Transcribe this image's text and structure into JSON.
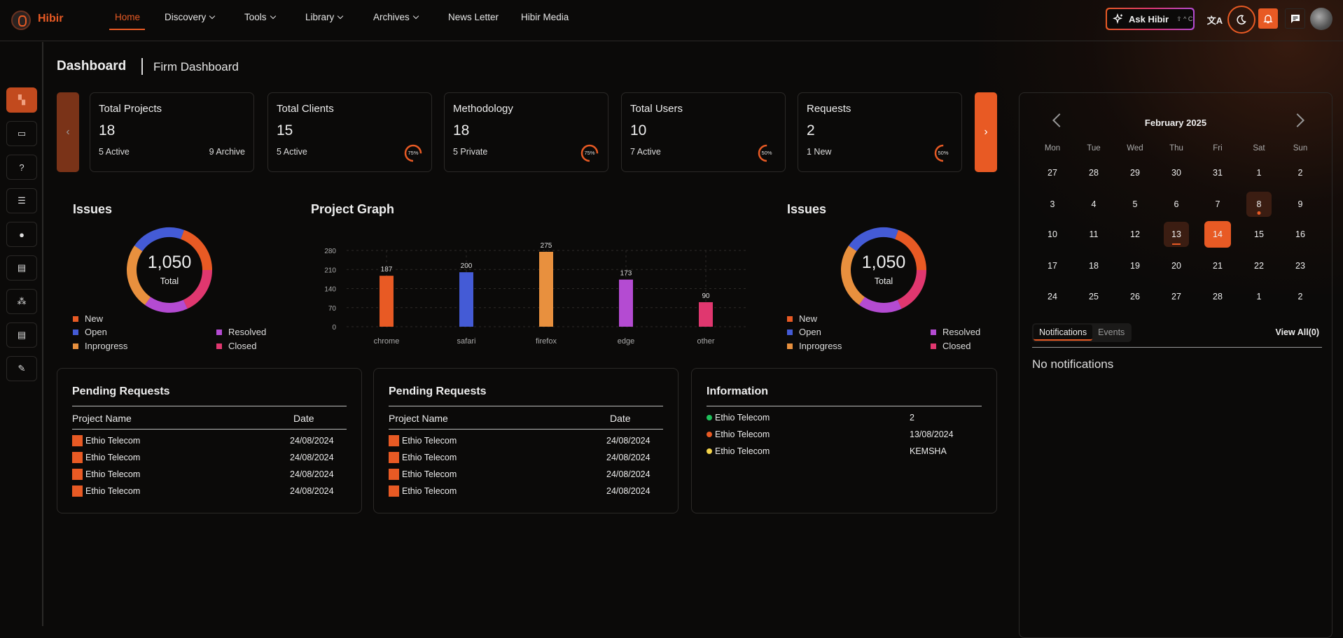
{
  "brand": "Hibir",
  "nav": [
    {
      "label": "Home",
      "dropdown": false
    },
    {
      "label": "Discovery",
      "dropdown": true
    },
    {
      "label": "Tools",
      "dropdown": true
    },
    {
      "label": "Library",
      "dropdown": true
    },
    {
      "label": "Archives",
      "dropdown": true
    },
    {
      "label": "News Letter",
      "dropdown": false
    },
    {
      "label": "Hibir Media",
      "dropdown": false
    }
  ],
  "ask": {
    "label": "Ask Hibir",
    "shortcut": "⇧ ^ C"
  },
  "sidebar": [
    "dashboard-icon",
    "briefcase-icon",
    "help-icon",
    "list-icon",
    "user-icon",
    "scroll-icon",
    "team-icon",
    "document-icon",
    "tools-icon"
  ],
  "page": {
    "title": "Dashboard",
    "subtitle": "Firm Dashboard"
  },
  "stats": [
    {
      "title": "Total Projects",
      "value": "18",
      "sub": "5 Active",
      "right": "9 Archive"
    },
    {
      "title": "Total Clients",
      "value": "15",
      "sub": "5 Active",
      "percent": 75
    },
    {
      "title": "Methodology",
      "value": "18",
      "sub": "5 Private",
      "percent": 75
    },
    {
      "title": "Total Users",
      "value": "10",
      "sub": "7 Active",
      "percent": 50
    },
    {
      "title": "Requests",
      "value": "2",
      "sub": "1 New",
      "percent": 50
    }
  ],
  "colors": {
    "accent": "#e85a24",
    "new": "#e85a24",
    "open": "#445bd6",
    "inprogress": "#e8903e",
    "resolved": "#b44bd2",
    "closed": "#e0376f"
  },
  "issues": {
    "title": "Issues",
    "total": "1,050",
    "total_label": "Total",
    "segments": [
      {
        "name": "New",
        "value": 204
      },
      {
        "name": "Closed",
        "value": 190
      },
      {
        "name": "Resolved",
        "value": 175
      },
      {
        "name": "Inprogress",
        "value": 262
      },
      {
        "name": "Open",
        "value": 219
      }
    ],
    "legend": [
      "New",
      "Open",
      "Inprogress",
      "Resolved",
      "Closed"
    ]
  },
  "chart_data": {
    "type": "bar",
    "title": "Project Graph",
    "categories": [
      "chrome",
      "safari",
      "firefox",
      "edge",
      "other"
    ],
    "values": [
      187,
      200,
      275,
      173,
      90
    ],
    "ylim": [
      0,
      280
    ],
    "yticks": [
      0,
      70,
      140,
      210,
      280
    ],
    "xlabel": "",
    "ylabel": "",
    "grid": true
  },
  "pending": [
    {
      "title": "Pending Requests",
      "headers": [
        "Project Name",
        "Date"
      ],
      "rows": [
        [
          "Ethio Telecom",
          "24/08/2024"
        ],
        [
          "Ethio Telecom",
          "24/08/2024"
        ],
        [
          "Ethio Telecom",
          "24/08/2024"
        ],
        [
          "Ethio Telecom",
          "24/08/2024"
        ]
      ]
    },
    {
      "title": "Pending Requests",
      "headers": [
        "Project Name",
        "Date"
      ],
      "rows": [
        [
          "Ethio Telecom",
          "24/08/2024"
        ],
        [
          "Ethio Telecom",
          "24/08/2024"
        ],
        [
          "Ethio Telecom",
          "24/08/2024"
        ],
        [
          "Ethio Telecom",
          "24/08/2024"
        ]
      ]
    }
  ],
  "information": {
    "title": "Information",
    "rows": [
      {
        "name": "Ethio Telecom",
        "value": "2",
        "color": "#1fbf5a"
      },
      {
        "name": "Ethio Telecom",
        "value": "13/08/2024",
        "color": "#e85a24"
      },
      {
        "name": "Ethio Telecom",
        "value": "KEMSHA",
        "color": "#f3d34a"
      }
    ]
  },
  "calendar": {
    "month": "February 2025",
    "weekdays": [
      "Mon",
      "Tue",
      "Wed",
      "Thu",
      "Fri",
      "Sat",
      "Sun"
    ],
    "days": [
      "27",
      "28",
      "29",
      "30",
      "31",
      "1",
      "2",
      "3",
      "4",
      "5",
      "6",
      "7",
      "8",
      "9",
      "10",
      "11",
      "12",
      "13",
      "14",
      "15",
      "16",
      "17",
      "18",
      "19",
      "20",
      "21",
      "22",
      "23",
      "24",
      "25",
      "26",
      "27",
      "28",
      "1",
      "2"
    ],
    "event_days": [
      "8",
      "13"
    ],
    "today": "14"
  },
  "notifications": {
    "tabs": [
      "Notifications",
      "Events"
    ],
    "view_all": "View All(0)",
    "empty": "No notifications"
  }
}
